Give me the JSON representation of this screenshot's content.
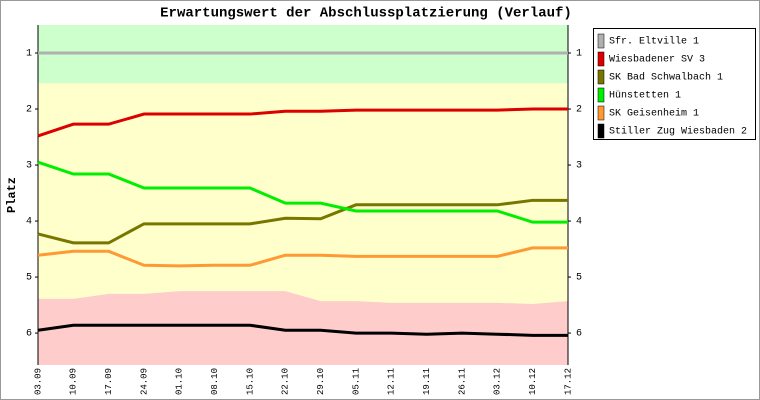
{
  "chart_data": {
    "type": "line",
    "title": "Erwartungswert der Abschlussplatzierung (Verlauf)",
    "y_label": "Platz",
    "categories": [
      "03.09",
      "10.09",
      "17.09",
      "24.09",
      "01.10",
      "08.10",
      "15.10",
      "22.10",
      "29.10",
      "05.11",
      "12.11",
      "19.11",
      "26.11",
      "03.12",
      "10.12",
      "17.12"
    ],
    "ylim": [
      0.5,
      6.57
    ],
    "inverted": true,
    "yticks": [
      1,
      2,
      3,
      4,
      5,
      6
    ],
    "promotion_zone": {
      "color": "#ccffcc",
      "limit": 1.54
    },
    "middle_zone": {
      "color": "#ffffcc"
    },
    "relegation_zone": {
      "color": "#ffcccc",
      "values": [
        5.39,
        5.39,
        5.3,
        5.3,
        5.25,
        5.25,
        5.25,
        5.25,
        5.43,
        5.43,
        5.46,
        5.46,
        5.46,
        5.46,
        5.48,
        5.43
      ]
    },
    "series": [
      {
        "name": "Sfr. Eltville 1",
        "color": "#b0b0b0",
        "values": [
          1,
          1,
          1,
          1,
          1,
          1,
          1,
          1,
          1,
          1,
          1,
          1,
          1,
          1,
          1,
          1
        ]
      },
      {
        "name": "Wiesbadener SV 3",
        "color": "#dd0000",
        "values": [
          2.48,
          2.27,
          2.27,
          2.09,
          2.09,
          2.09,
          2.09,
          2.04,
          2.04,
          2.02,
          2.02,
          2.02,
          2.02,
          2.02,
          2.0,
          2.0
        ]
      },
      {
        "name": "SK Bad Schwalbach 1",
        "color": "#777700",
        "values": [
          4.23,
          4.39,
          4.39,
          4.05,
          4.05,
          4.05,
          4.05,
          3.95,
          3.96,
          3.71,
          3.71,
          3.71,
          3.71,
          3.71,
          3.63,
          3.63
        ]
      },
      {
        "name": "Hünstetten 1",
        "color": "#00ee00",
        "values": [
          2.95,
          3.16,
          3.16,
          3.41,
          3.41,
          3.41,
          3.41,
          3.68,
          3.68,
          3.82,
          3.82,
          3.82,
          3.82,
          3.82,
          4.02,
          4.02
        ]
      },
      {
        "name": "SK Geisenheim 1",
        "color": "#ff9933",
        "values": [
          4.61,
          4.54,
          4.54,
          4.79,
          4.8,
          4.79,
          4.79,
          4.61,
          4.61,
          4.63,
          4.63,
          4.63,
          4.63,
          4.63,
          4.48,
          4.48
        ]
      },
      {
        "name": "Stiller Zug Wiesbaden 2",
        "color": "#000000",
        "values": [
          5.95,
          5.86,
          5.86,
          5.86,
          5.86,
          5.86,
          5.86,
          5.95,
          5.95,
          6.0,
          6.0,
          6.02,
          6.0,
          6.02,
          6.04,
          6.04
        ]
      }
    ]
  }
}
